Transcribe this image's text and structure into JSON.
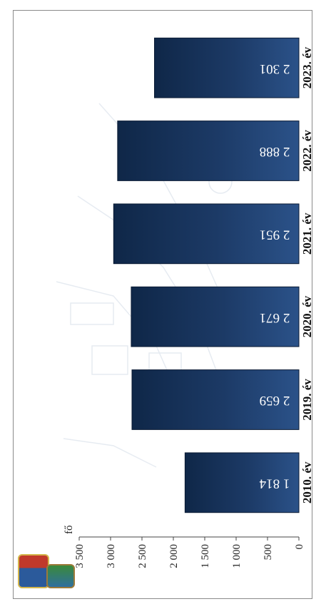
{
  "chart_data": {
    "type": "bar",
    "orientation": "horizontal",
    "title": "",
    "xlabel": "",
    "ylabel": "fő",
    "categories": [
      "2010. év",
      "2019. év",
      "2020. év",
      "2021. év",
      "2022. év",
      "2023. év"
    ],
    "values": [
      1814,
      2659,
      2671,
      2951,
      2888,
      2301
    ],
    "value_labels": [
      "1 814",
      "2 659",
      "2 671",
      "2 951",
      "2 888",
      "2 301"
    ],
    "ylim": [
      0,
      3500
    ],
    "ticks": [
      0,
      500,
      1000,
      1500,
      2000,
      2500,
      3000,
      3500
    ],
    "tick_labels": [
      "0",
      "500",
      "1 000",
      "1 500",
      "2 000",
      "2 500",
      "3 000",
      "3 500"
    ],
    "grid": false,
    "bar_color": "#1c3a66",
    "label_color": "#ffffff"
  },
  "logos": [
    "coat-of-arms-icon",
    "town-badge-icon"
  ]
}
